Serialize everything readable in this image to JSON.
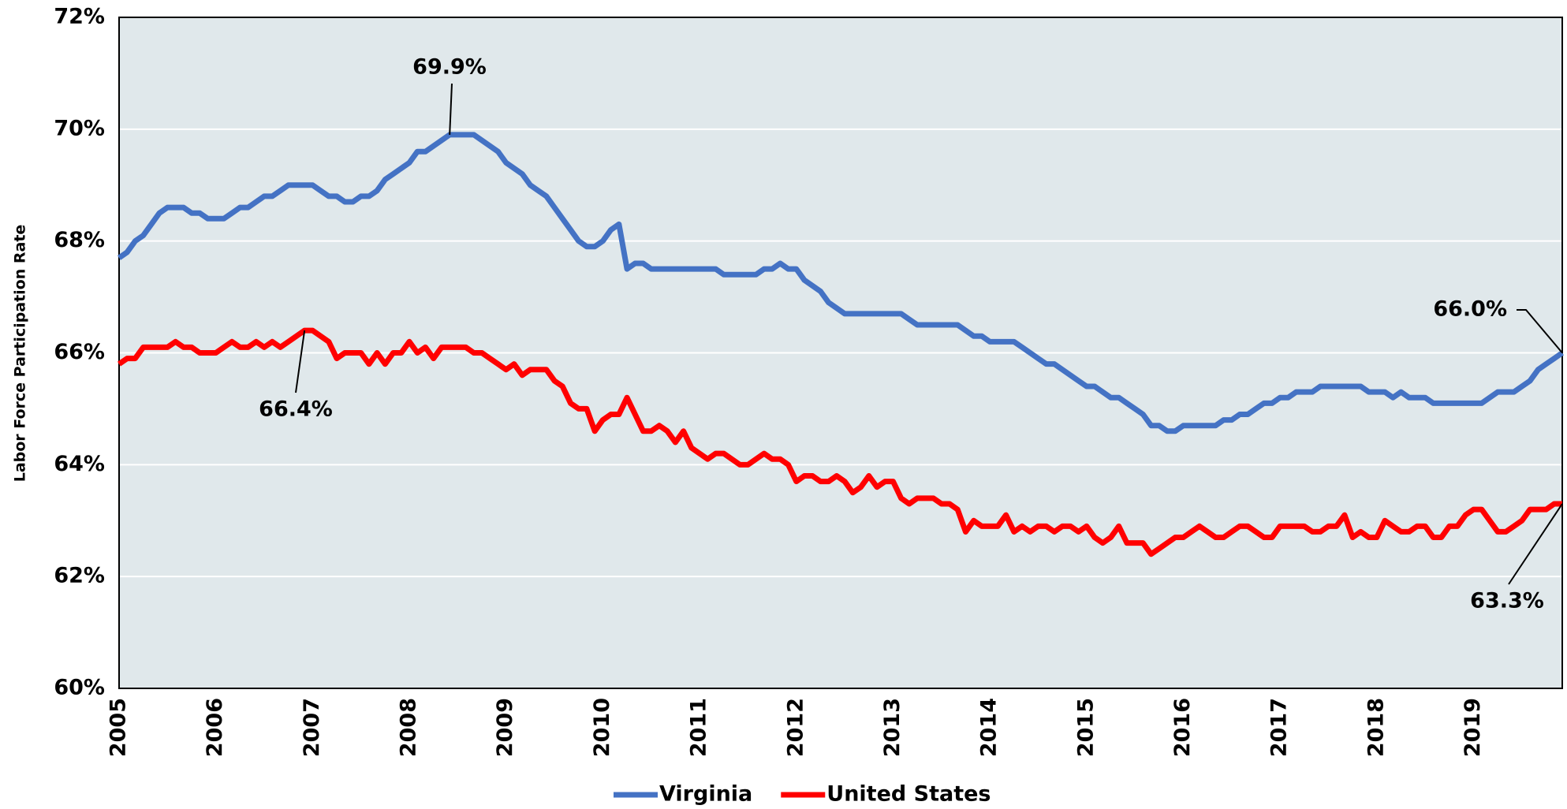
{
  "chart_data": {
    "type": "line",
    "y_label": "Labor Force Participation Rate",
    "categories": [
      "2005",
      null,
      null,
      null,
      null,
      null,
      null,
      null,
      null,
      null,
      null,
      null,
      "2006",
      null,
      null,
      null,
      null,
      null,
      null,
      null,
      null,
      null,
      null,
      null,
      "2007",
      null,
      null,
      null,
      null,
      null,
      null,
      null,
      null,
      null,
      null,
      null,
      "2008",
      null,
      null,
      null,
      null,
      null,
      null,
      null,
      null,
      null,
      null,
      null,
      "2009",
      null,
      null,
      null,
      null,
      null,
      null,
      null,
      null,
      null,
      null,
      null,
      "2010",
      null,
      null,
      null,
      null,
      null,
      null,
      null,
      null,
      null,
      null,
      null,
      "2011",
      null,
      null,
      null,
      null,
      null,
      null,
      null,
      null,
      null,
      null,
      null,
      "2012",
      null,
      null,
      null,
      null,
      null,
      null,
      null,
      null,
      null,
      null,
      null,
      "2013",
      null,
      null,
      null,
      null,
      null,
      null,
      null,
      null,
      null,
      null,
      null,
      "2014",
      null,
      null,
      null,
      null,
      null,
      null,
      null,
      null,
      null,
      null,
      null,
      "2015",
      null,
      null,
      null,
      null,
      null,
      null,
      null,
      null,
      null,
      null,
      null,
      "2016",
      null,
      null,
      null,
      null,
      null,
      null,
      null,
      null,
      null,
      null,
      null,
      "2017",
      null,
      null,
      null,
      null,
      null,
      null,
      null,
      null,
      null,
      null,
      null,
      "2018",
      null,
      null,
      null,
      null,
      null,
      null,
      null,
      null,
      null,
      null,
      null,
      "2019",
      null,
      null,
      null,
      null,
      null,
      null,
      null,
      null,
      null,
      null,
      null
    ],
    "series": [
      {
        "name": "Virginia",
        "color": "#4472c4",
        "values": [
          67.7,
          67.8,
          68.0,
          68.1,
          68.3,
          68.5,
          68.6,
          68.6,
          68.6,
          68.5,
          68.5,
          68.4,
          68.4,
          68.4,
          68.5,
          68.6,
          68.6,
          68.7,
          68.8,
          68.8,
          68.9,
          69.0,
          69.0,
          69.0,
          69.0,
          68.9,
          68.8,
          68.8,
          68.7,
          68.7,
          68.8,
          68.8,
          68.9,
          69.1,
          69.2,
          69.3,
          69.4,
          69.6,
          69.6,
          69.7,
          69.8,
          69.9,
          69.9,
          69.9,
          69.9,
          69.8,
          69.7,
          69.6,
          69.4,
          69.3,
          69.2,
          69.0,
          68.9,
          68.8,
          68.6,
          68.4,
          68.2,
          68.0,
          67.9,
          67.9,
          68.0,
          68.2,
          68.3,
          67.5,
          67.6,
          67.6,
          67.5,
          67.5,
          67.5,
          67.5,
          67.5,
          67.5,
          67.5,
          67.5,
          67.5,
          67.4,
          67.4,
          67.4,
          67.4,
          67.4,
          67.5,
          67.5,
          67.6,
          67.5,
          67.5,
          67.3,
          67.2,
          67.1,
          66.9,
          66.8,
          66.7,
          66.7,
          66.7,
          66.7,
          66.7,
          66.7,
          66.7,
          66.7,
          66.6,
          66.5,
          66.5,
          66.5,
          66.5,
          66.5,
          66.5,
          66.4,
          66.3,
          66.3,
          66.2,
          66.2,
          66.2,
          66.2,
          66.1,
          66.0,
          65.9,
          65.8,
          65.8,
          65.7,
          65.6,
          65.5,
          65.4,
          65.4,
          65.3,
          65.2,
          65.2,
          65.1,
          65.0,
          64.9,
          64.7,
          64.7,
          64.6,
          64.6,
          64.7,
          64.7,
          64.7,
          64.7,
          64.7,
          64.8,
          64.8,
          64.9,
          64.9,
          65.0,
          65.1,
          65.1,
          65.2,
          65.2,
          65.3,
          65.3,
          65.3,
          65.4,
          65.4,
          65.4,
          65.4,
          65.4,
          65.4,
          65.3,
          65.3,
          65.3,
          65.2,
          65.3,
          65.2,
          65.2,
          65.2,
          65.1,
          65.1,
          65.1,
          65.1,
          65.1,
          65.1,
          65.1,
          65.2,
          65.3,
          65.3,
          65.3,
          65.4,
          65.5,
          65.7,
          65.8,
          65.9,
          66.0
        ]
      },
      {
        "name": "United States",
        "color": "#ff0000",
        "values": [
          65.8,
          65.9,
          65.9,
          66.1,
          66.1,
          66.1,
          66.1,
          66.2,
          66.1,
          66.1,
          66.0,
          66.0,
          66.0,
          66.1,
          66.2,
          66.1,
          66.1,
          66.2,
          66.1,
          66.2,
          66.1,
          66.2,
          66.3,
          66.4,
          66.4,
          66.3,
          66.2,
          65.9,
          66.0,
          66.0,
          66.0,
          65.8,
          66.0,
          65.8,
          66.0,
          66.0,
          66.2,
          66.0,
          66.1,
          65.9,
          66.1,
          66.1,
          66.1,
          66.1,
          66.0,
          66.0,
          65.9,
          65.8,
          65.7,
          65.8,
          65.6,
          65.7,
          65.7,
          65.7,
          65.5,
          65.4,
          65.1,
          65.0,
          65.0,
          64.6,
          64.8,
          64.9,
          64.9,
          65.2,
          64.9,
          64.6,
          64.6,
          64.7,
          64.6,
          64.4,
          64.6,
          64.3,
          64.2,
          64.1,
          64.2,
          64.2,
          64.1,
          64.0,
          64.0,
          64.1,
          64.2,
          64.1,
          64.1,
          64.0,
          63.7,
          63.8,
          63.8,
          63.7,
          63.7,
          63.8,
          63.7,
          63.5,
          63.6,
          63.8,
          63.6,
          63.7,
          63.7,
          63.4,
          63.3,
          63.4,
          63.4,
          63.4,
          63.3,
          63.3,
          63.2,
          62.8,
          63.0,
          62.9,
          62.9,
          62.9,
          63.1,
          62.8,
          62.9,
          62.8,
          62.9,
          62.9,
          62.8,
          62.9,
          62.9,
          62.8,
          62.9,
          62.7,
          62.6,
          62.7,
          62.9,
          62.6,
          62.6,
          62.6,
          62.4,
          62.5,
          62.6,
          62.7,
          62.7,
          62.8,
          62.9,
          62.8,
          62.7,
          62.7,
          62.8,
          62.9,
          62.9,
          62.8,
          62.7,
          62.7,
          62.9,
          62.9,
          62.9,
          62.9,
          62.8,
          62.8,
          62.9,
          62.9,
          63.1,
          62.7,
          62.8,
          62.7,
          62.7,
          63.0,
          62.9,
          62.8,
          62.8,
          62.9,
          62.9,
          62.7,
          62.7,
          62.9,
          62.9,
          63.1,
          63.2,
          63.2,
          63.0,
          62.8,
          62.8,
          62.9,
          63.0,
          63.2,
          63.2,
          63.2,
          63.3,
          63.3
        ]
      }
    ],
    "ylim": [
      60,
      72
    ],
    "yticks": [
      {
        "value": 60,
        "label": "60%"
      },
      {
        "value": 62,
        "label": "62%"
      },
      {
        "value": 64,
        "label": "64%"
      },
      {
        "value": 66,
        "label": "66%"
      },
      {
        "value": 68,
        "label": "68%"
      },
      {
        "value": 70,
        "label": "70%"
      },
      {
        "value": 72,
        "label": "72%"
      }
    ],
    "grid": true,
    "legend": "bottom",
    "plot_background": "#e0e8eb",
    "annotations": [
      {
        "text": "69.9%",
        "color": "#000000"
      },
      {
        "text": "66.4%",
        "color": "#ff0000"
      },
      {
        "text": "66.0%",
        "color": "#000000"
      },
      {
        "text": "63.3%",
        "color": "#ff0000"
      }
    ]
  }
}
